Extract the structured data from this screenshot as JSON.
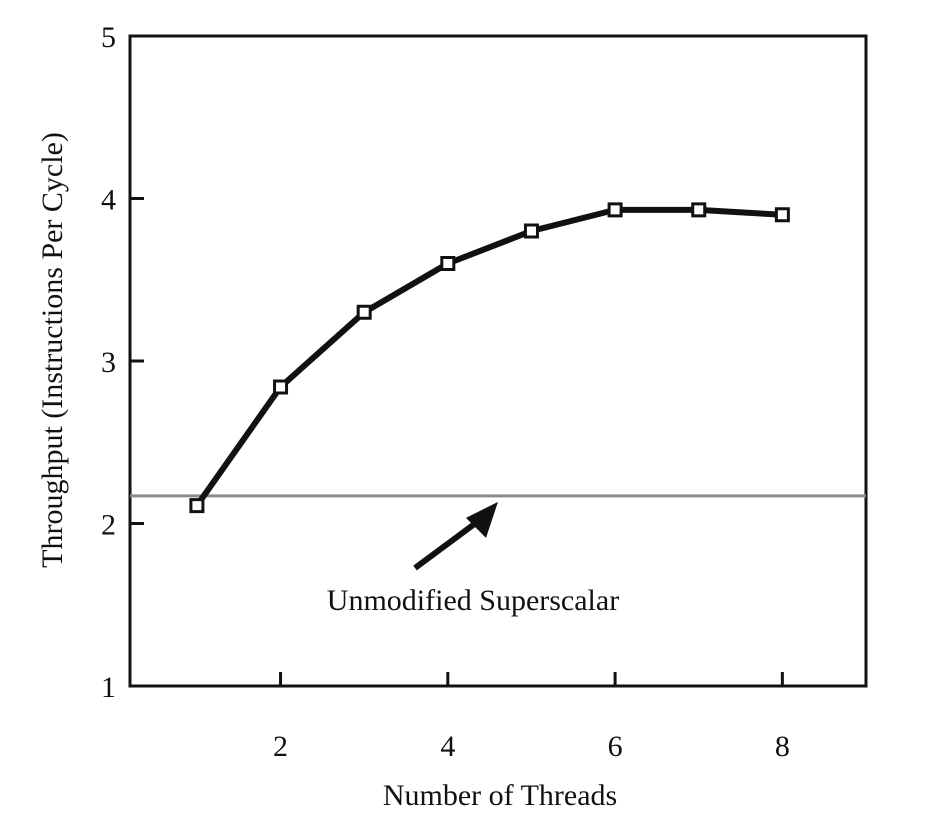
{
  "chart_data": {
    "type": "line",
    "title": "",
    "xlabel": "Number of Threads",
    "ylabel": "Throughput (Instructions Per Cycle)",
    "xlim": [
      0.2,
      9.0
    ],
    "ylim": [
      1,
      5
    ],
    "x_ticks": [
      2,
      4,
      6,
      8
    ],
    "y_ticks": [
      1,
      2,
      3,
      4,
      5
    ],
    "grid": false,
    "legend": "none",
    "series": [
      {
        "x": [
          1,
          2,
          3,
          4,
          5,
          6,
          7,
          8
        ],
        "values": [
          2.11,
          2.84,
          3.3,
          3.6,
          3.8,
          3.93,
          3.93,
          3.9
        ],
        "marker": "open-square",
        "color": "#111111"
      }
    ],
    "reference_lines": [
      {
        "orientation": "horizontal",
        "y": 2.17,
        "color": "#8c8c8c",
        "label": "Unmodified Superscalar"
      }
    ]
  }
}
